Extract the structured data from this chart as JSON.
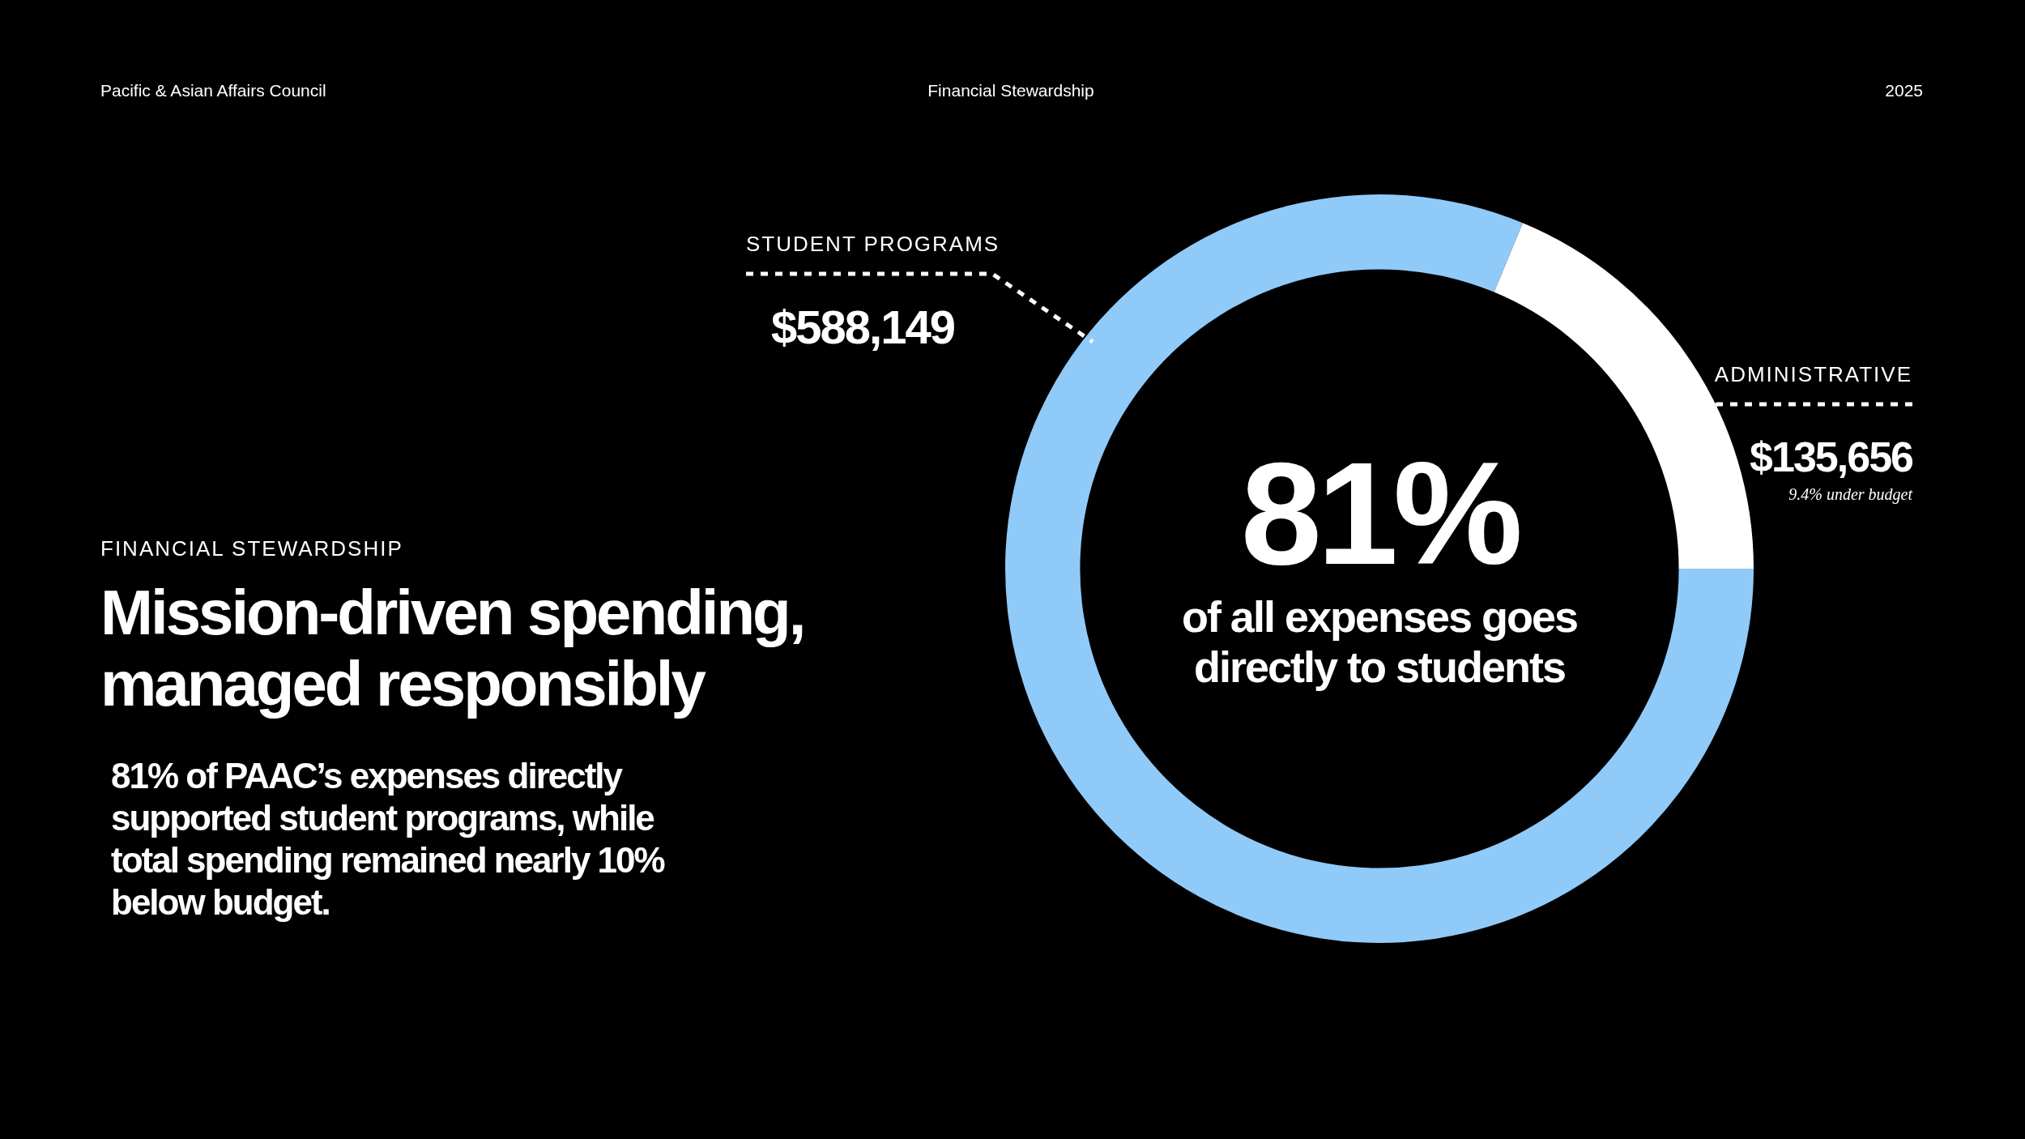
{
  "chart_data": {
    "type": "donut",
    "title": "Mission-driven spending, managed responsibly",
    "subtitle": "81% of PAAC’s expenses directly supported student programs, while total spending remained nearly 10% below budget.",
    "categories": [
      "STUDENT PROGRAMS",
      "ADMINISTRATIVE"
    ],
    "values": [
      588149,
      135656
    ],
    "colors": [
      "#90caf9",
      "#ffffff"
    ],
    "value_labels": [
      "$588,149",
      "$135,656"
    ],
    "annotations": [
      "Pacific & Asian Affairs Council",
      "Financial Stewardship",
      "2025",
      "FINANCIAL STEWARDSHIP",
      "81%",
      "of all expenses goes directly to students",
      "9.4% under budget"
    ]
  }
}
